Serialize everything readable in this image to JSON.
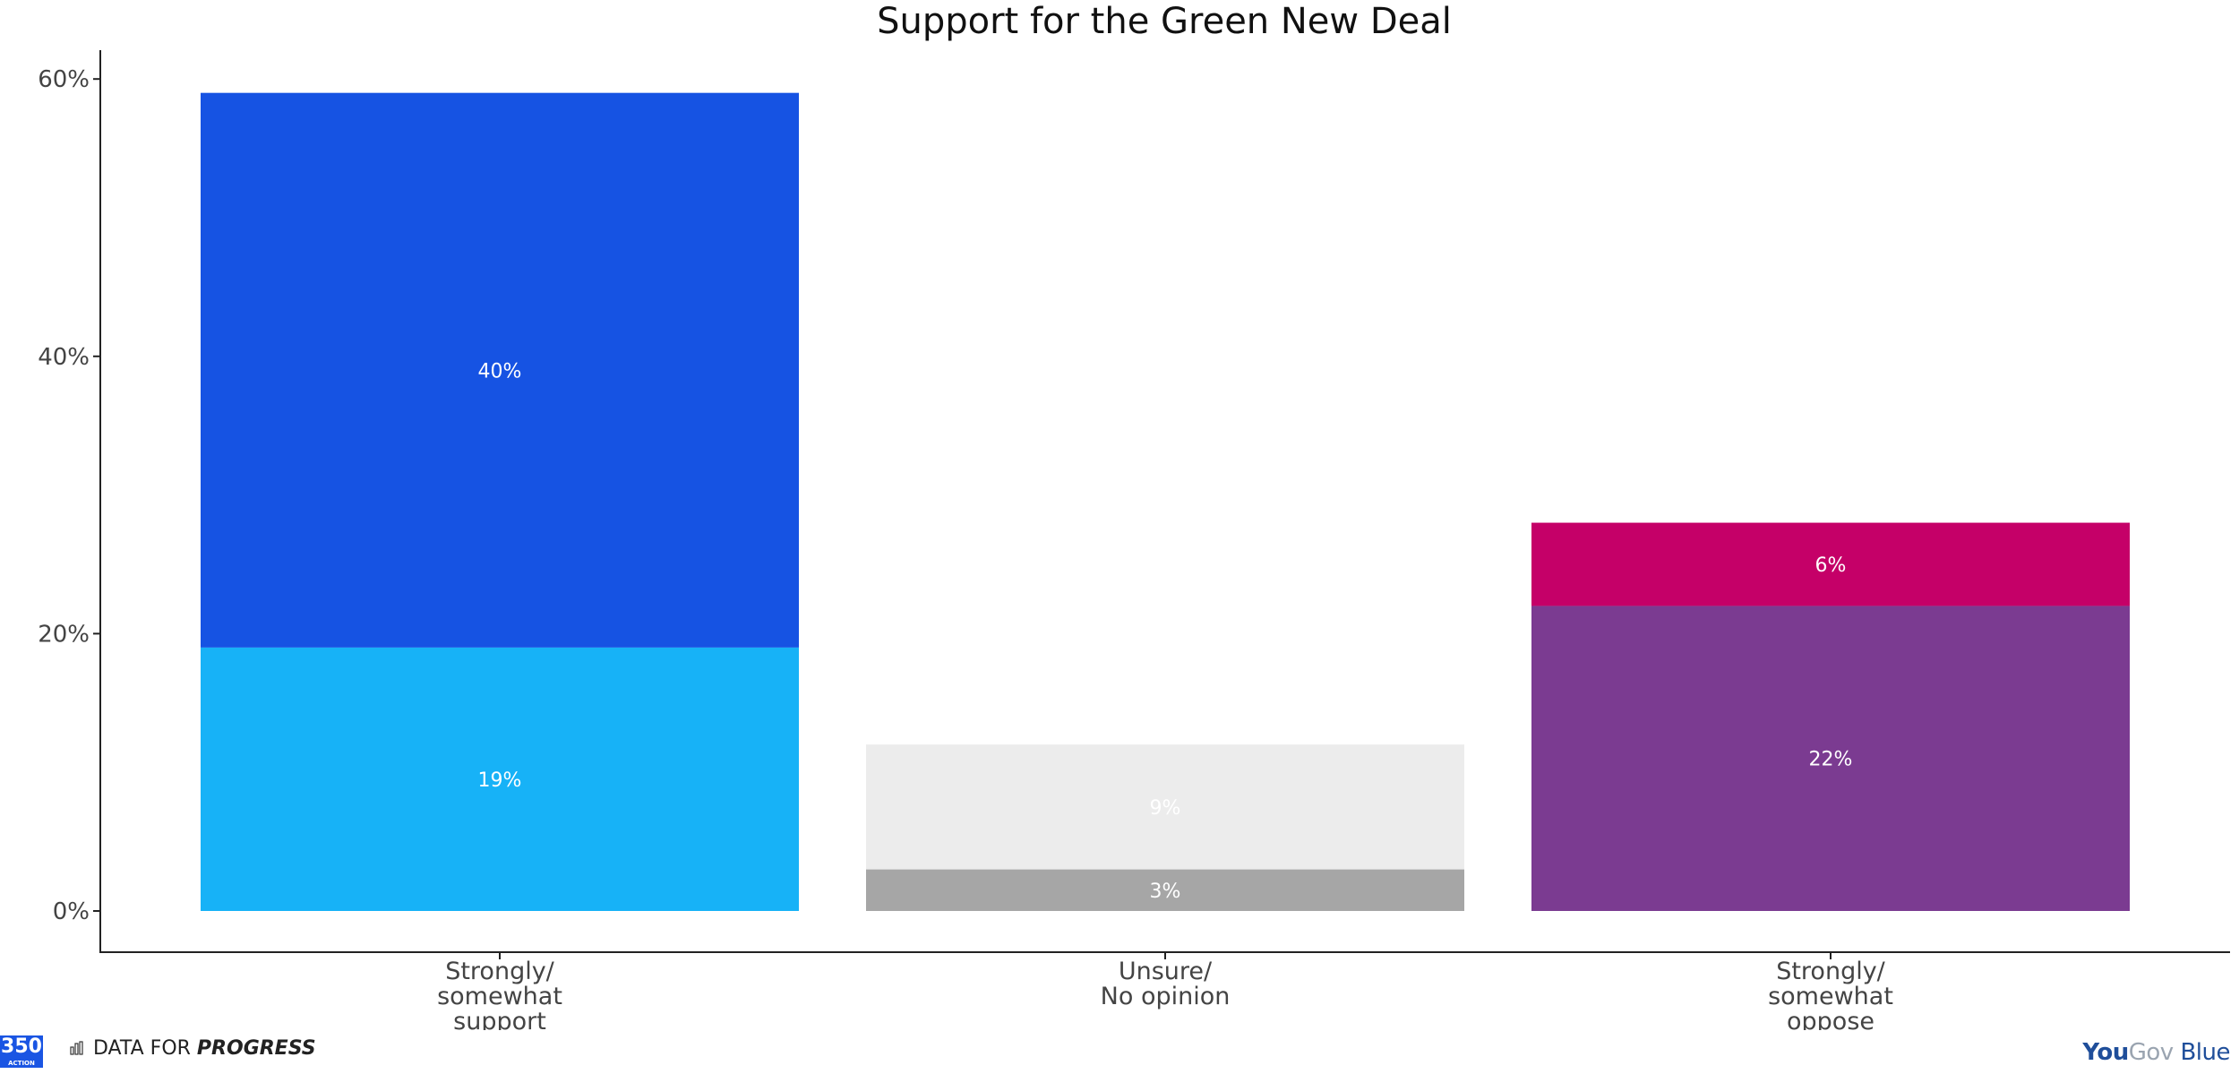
{
  "chart_data": {
    "type": "bar",
    "stacked": true,
    "title": "Support for the Green New Deal",
    "categories": [
      [
        "Strongly/",
        "somewhat",
        "support"
      ],
      [
        "Unsure/",
        "No opinion"
      ],
      [
        "Strongly/",
        "somewhat",
        "oppose"
      ]
    ],
    "stacks": [
      [
        {
          "value": 19,
          "label": "19%",
          "color": "#17b2f7"
        },
        {
          "value": 40,
          "label": "40%",
          "color": "#1653e3"
        }
      ],
      [
        {
          "value": 3,
          "label": "3%",
          "color": "#a6a6a6"
        },
        {
          "value": 9,
          "label": "9%",
          "color": "#ececec"
        }
      ],
      [
        {
          "value": 22,
          "label": "22%",
          "color": "#7b3b91"
        },
        {
          "value": 6,
          "label": "6%",
          "color": "#c50068"
        }
      ]
    ],
    "ylim": [
      0,
      62
    ],
    "yticks": [
      0,
      20,
      40,
      60
    ],
    "ytick_labels": [
      "0%",
      "20%",
      "40%",
      "60%"
    ],
    "grid": false,
    "legend": "none"
  },
  "footer": {
    "logo_350": "350",
    "logo_350_sub": "ACTION",
    "dfp_prefix": "DATA FOR ",
    "dfp_bold": "PROGRESS",
    "yougov_you": "You",
    "yougov_gov": "Gov",
    "yougov_blue": " Blue"
  }
}
